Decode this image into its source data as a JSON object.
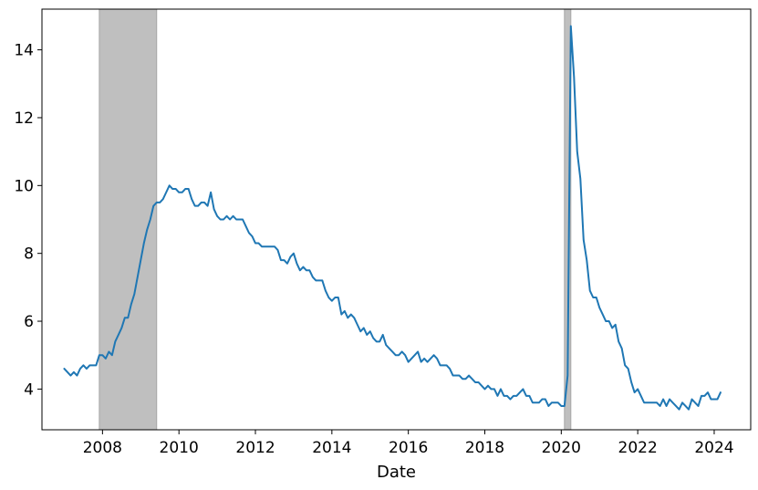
{
  "chart_data": {
    "type": "line",
    "title": "",
    "xlabel": "Date",
    "ylabel": "",
    "xlim": [
      "2006-06-01",
      "2024-12-15"
    ],
    "ylim": [
      2.8,
      15.2
    ],
    "x_ticks": [
      "2008",
      "2010",
      "2012",
      "2014",
      "2016",
      "2018",
      "2020",
      "2022",
      "2024"
    ],
    "y_ticks": [
      4,
      6,
      8,
      10,
      12,
      14
    ],
    "grid": false,
    "legend": "none",
    "line_color": "#1f77b4",
    "shade_color": "#bfbfbf",
    "recessions": [
      {
        "start": "2007-12",
        "end": "2009-06"
      },
      {
        "start": "2020-02",
        "end": "2020-04"
      }
    ],
    "series": [
      {
        "start": "2007-01",
        "frequency": "monthly",
        "values": [
          4.6,
          4.5,
          4.4,
          4.5,
          4.4,
          4.6,
          4.7,
          4.6,
          4.7,
          4.7,
          4.7,
          5.0,
          5.0,
          4.9,
          5.1,
          5.0,
          5.4,
          5.6,
          5.8,
          6.1,
          6.1,
          6.5,
          6.8,
          7.3,
          7.8,
          8.3,
          8.7,
          9.0,
          9.4,
          9.5,
          9.5,
          9.6,
          9.8,
          10.0,
          9.9,
          9.9,
          9.8,
          9.8,
          9.9,
          9.9,
          9.6,
          9.4,
          9.4,
          9.5,
          9.5,
          9.4,
          9.8,
          9.3,
          9.1,
          9.0,
          9.0,
          9.1,
          9.0,
          9.1,
          9.0,
          9.0,
          9.0,
          8.8,
          8.6,
          8.5,
          8.3,
          8.3,
          8.2,
          8.2,
          8.2,
          8.2,
          8.2,
          8.1,
          7.8,
          7.8,
          7.7,
          7.9,
          8.0,
          7.7,
          7.5,
          7.6,
          7.5,
          7.5,
          7.3,
          7.2,
          7.2,
          7.2,
          6.9,
          6.7,
          6.6,
          6.7,
          6.7,
          6.2,
          6.3,
          6.1,
          6.2,
          6.1,
          5.9,
          5.7,
          5.8,
          5.6,
          5.7,
          5.5,
          5.4,
          5.4,
          5.6,
          5.3,
          5.2,
          5.1,
          5.0,
          5.0,
          5.1,
          5.0,
          4.8,
          4.9,
          5.0,
          5.1,
          4.8,
          4.9,
          4.8,
          4.9,
          5.0,
          4.9,
          4.7,
          4.7,
          4.7,
          4.6,
          4.4,
          4.4,
          4.4,
          4.3,
          4.3,
          4.4,
          4.3,
          4.2,
          4.2,
          4.1,
          4.0,
          4.1,
          4.0,
          4.0,
          3.8,
          4.0,
          3.8,
          3.8,
          3.7,
          3.8,
          3.8,
          3.9,
          4.0,
          3.8,
          3.8,
          3.6,
          3.6,
          3.6,
          3.7,
          3.7,
          3.5,
          3.6,
          3.6,
          3.6,
          3.5,
          3.5,
          4.4,
          14.7,
          13.2,
          11.0,
          10.2,
          8.4,
          7.8,
          6.9,
          6.7,
          6.7,
          6.4,
          6.2,
          6.0,
          6.0,
          5.8,
          5.9,
          5.4,
          5.2,
          4.7,
          4.6,
          4.2,
          3.9,
          4.0,
          3.8,
          3.6,
          3.6,
          3.6,
          3.6,
          3.6,
          3.5,
          3.7,
          3.5,
          3.7,
          3.6,
          3.5,
          3.4,
          3.6,
          3.5,
          3.4,
          3.7,
          3.6,
          3.5,
          3.8,
          3.8,
          3.9,
          3.7,
          3.7,
          3.7,
          3.9
        ]
      }
    ]
  }
}
